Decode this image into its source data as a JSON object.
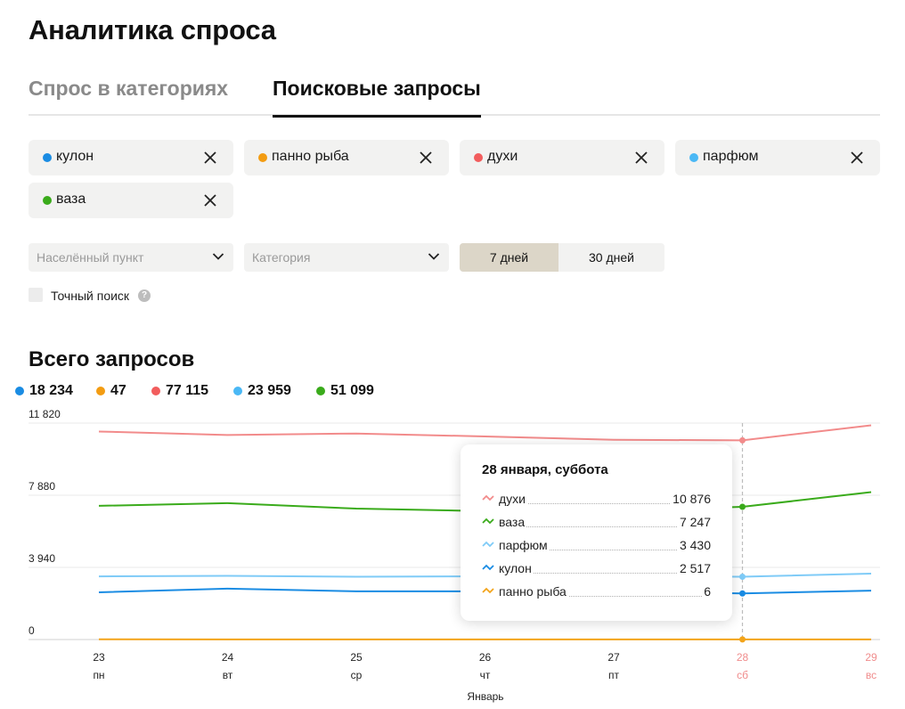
{
  "page_title": "Аналитика спроса",
  "tabs": [
    {
      "label": "Спрос в категориях",
      "active": false
    },
    {
      "label": "Поисковые запросы",
      "active": true
    }
  ],
  "chips": [
    {
      "label": "кулон",
      "color": "#1a8ce3"
    },
    {
      "label": "панно рыба",
      "color": "#f39c12"
    },
    {
      "label": "духи",
      "color": "#f25d5d"
    },
    {
      "label": "парфюм",
      "color": "#4ab8f5"
    },
    {
      "label": "ваза",
      "color": "#3aab1b"
    }
  ],
  "filters": {
    "city_placeholder": "Населённый пункт",
    "category_placeholder": "Категория",
    "period_options": [
      "7 дней",
      "30 дней"
    ],
    "period_selected": "7 дней",
    "exact_search_label": "Точный поиск",
    "exact_search_checked": false,
    "help_glyph": "?"
  },
  "section_title": "Всего запросов",
  "totals": [
    {
      "value": "18 234",
      "color": "#1a8ce3"
    },
    {
      "value": "47",
      "color": "#f39c12"
    },
    {
      "value": "77 115",
      "color": "#f25d5d"
    },
    {
      "value": "23 959",
      "color": "#4ab8f5"
    },
    {
      "value": "51 099",
      "color": "#3aab1b"
    }
  ],
  "chart_data": {
    "type": "line",
    "x": [
      "23",
      "24",
      "25",
      "26",
      "27",
      "28",
      "29"
    ],
    "x_weekdays": [
      "пн",
      "вт",
      "ср",
      "чт",
      "пт",
      "сб",
      "вс"
    ],
    "weekend_flags": [
      false,
      false,
      false,
      false,
      false,
      true,
      true
    ],
    "xlabel": "Январь",
    "ylim": [
      0,
      11820
    ],
    "y_ticks": [
      0,
      3940,
      7880,
      11820
    ],
    "y_tick_labels": [
      "0",
      "3 940",
      "7 880",
      "11 820"
    ],
    "grid": true,
    "highlight_index": 5,
    "series": [
      {
        "name": "духи",
        "color": "#f28b8b",
        "values": [
          11360,
          11170,
          11250,
          11090,
          10910,
          10876,
          11700
        ]
      },
      {
        "name": "ваза",
        "color": "#3aab1b",
        "values": [
          7300,
          7450,
          7150,
          7010,
          7010,
          7247,
          8050
        ]
      },
      {
        "name": "парфюм",
        "color": "#7fcbf7",
        "values": [
          3450,
          3480,
          3430,
          3450,
          3450,
          3430,
          3600
        ]
      },
      {
        "name": "кулон",
        "color": "#1a8ce3",
        "values": [
          2580,
          2780,
          2630,
          2630,
          2630,
          2517,
          2670
        ]
      },
      {
        "name": "панно рыба",
        "color": "#f3a41a",
        "values": [
          10,
          8,
          8,
          7,
          7,
          6,
          7
        ]
      }
    ]
  },
  "tooltip": {
    "title": "28 января, суббота",
    "rows": [
      {
        "name": "духи",
        "value": "10 876",
        "color": "#f28b8b"
      },
      {
        "name": "ваза",
        "value": "7 247",
        "color": "#3aab1b"
      },
      {
        "name": "парфюм",
        "value": "3 430",
        "color": "#7fcbf7"
      },
      {
        "name": "кулон",
        "value": "2 517",
        "color": "#1a8ce3"
      },
      {
        "name": "панно рыба",
        "value": "6",
        "color": "#f3a41a"
      }
    ]
  }
}
